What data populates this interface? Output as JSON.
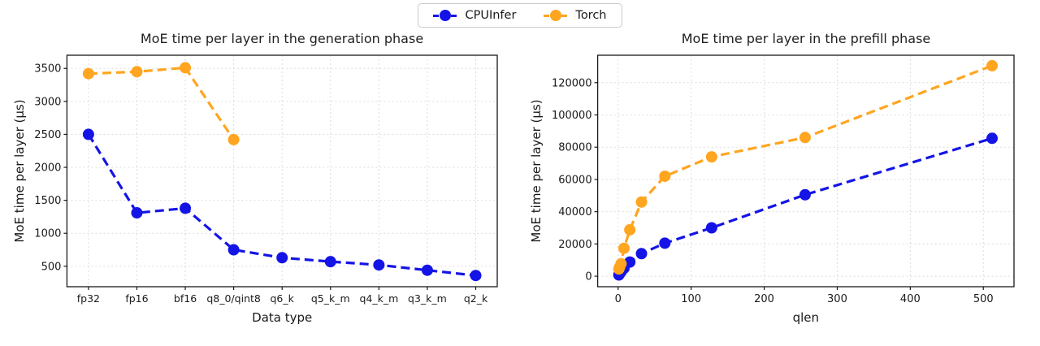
{
  "legend": {
    "items": [
      {
        "label": "CPUInfer",
        "color": "#1414e6"
      },
      {
        "label": "Torch",
        "color": "#ffa51f"
      }
    ]
  },
  "chart_data": [
    {
      "type": "line",
      "title": "MoE time per layer in the generation phase",
      "xlabel": "Data type",
      "ylabel": "MoE time per layer (µs)",
      "categories": [
        "fp32",
        "fp16",
        "bf16",
        "q8_0/qint8",
        "q6_k",
        "q5_k_m",
        "q4_k_m",
        "q3_k_m",
        "q2_k"
      ],
      "yticks": [
        500,
        1000,
        1500,
        2000,
        2500,
        3000,
        3500
      ],
      "ylim": [
        190,
        3700
      ],
      "grid": true,
      "legend_position": "top-center",
      "series": [
        {
          "name": "CPUInfer",
          "color": "#1414e6",
          "values": [
            2500,
            1310,
            1380,
            750,
            630,
            570,
            520,
            440,
            360
          ]
        },
        {
          "name": "Torch",
          "color": "#ffa51f",
          "values": [
            3420,
            3450,
            3510,
            2420,
            null,
            null,
            null,
            null,
            null
          ]
        }
      ]
    },
    {
      "type": "line",
      "title": "MoE time per layer in the prefill phase",
      "xlabel": "qlen",
      "ylabel": "MoE time per layer (µs)",
      "x": [
        1,
        2,
        4,
        8,
        16,
        32,
        64,
        128,
        256,
        512
      ],
      "xticks": [
        0,
        100,
        200,
        300,
        400,
        500
      ],
      "xlim": [
        -28,
        542
      ],
      "yticks": [
        0,
        20000,
        40000,
        60000,
        80000,
        100000,
        120000
      ],
      "ylim": [
        -6500,
        137000
      ],
      "grid": true,
      "legend_position": "top-center",
      "series": [
        {
          "name": "CPUInfer",
          "color": "#1414e6",
          "values": [
            800,
            1500,
            2700,
            4900,
            8800,
            14000,
            20500,
            30000,
            50500,
            85500
          ]
        },
        {
          "name": "Torch",
          "color": "#ffa51f",
          "values": [
            4500,
            5600,
            7700,
            17300,
            28800,
            46000,
            62000,
            74000,
            86000,
            130500
          ]
        }
      ]
    }
  ]
}
